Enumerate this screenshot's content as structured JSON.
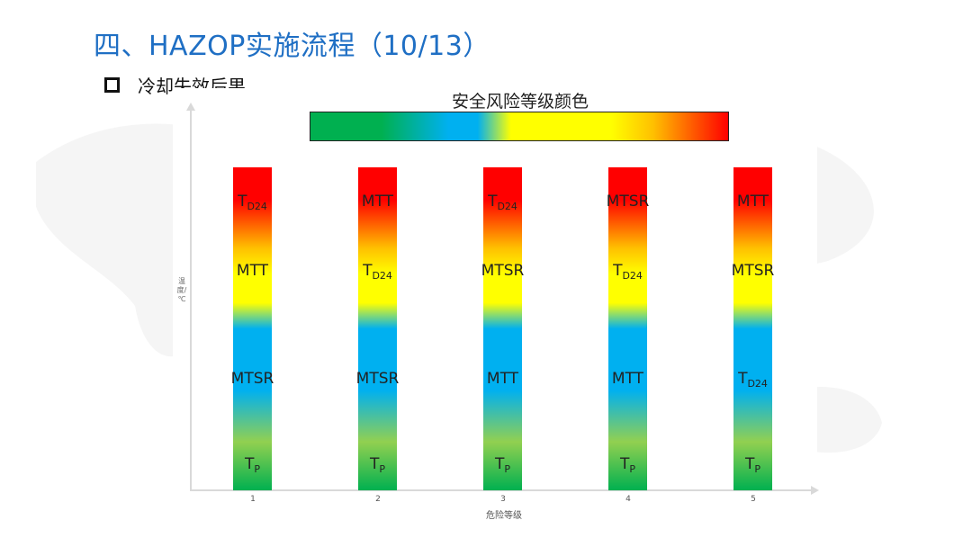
{
  "slide": {
    "title": "四、HAZOP实施流程（10/13）",
    "bullet": "冷却失效后果"
  },
  "legend": {
    "title": "安全风险等级颜色",
    "gradient_colors": [
      "#00b050",
      "#00b0f0",
      "#ffff00",
      "#ffc000",
      "#ff0000"
    ]
  },
  "chart_data": {
    "type": "table",
    "ylabel": "温度/℃",
    "xlabel": "危险等级",
    "categories": [
      "1",
      "2",
      "3",
      "4",
      "5"
    ],
    "columns": [
      {
        "category": "1",
        "labels_top_to_bottom": [
          "TD24",
          "MTT",
          "MTSR",
          "Tp"
        ]
      },
      {
        "category": "2",
        "labels_top_to_bottom": [
          "MTT",
          "TD24",
          "MTSR",
          "Tp"
        ]
      },
      {
        "category": "3",
        "labels_top_to_bottom": [
          "TD24",
          "MTSR",
          "MTT",
          "Tp"
        ]
      },
      {
        "category": "4",
        "labels_top_to_bottom": [
          "MTSR",
          "TD24",
          "MTT",
          "Tp"
        ]
      },
      {
        "category": "5",
        "labels_top_to_bottom": [
          "MTT",
          "MTSR",
          "TD24",
          "Tp"
        ]
      }
    ],
    "label_parts": {
      "TD24": {
        "main": "T",
        "sub": "D24"
      },
      "Tp": {
        "main": "T",
        "sub": "P"
      },
      "MTT": {
        "main": "MTT",
        "sub": ""
      },
      "MTSR": {
        "main": "MTSR",
        "sub": ""
      }
    },
    "band_colors_top_to_bottom": [
      "#ff0000",
      "#ffff00",
      "#00b0f0",
      "#00b050"
    ],
    "grid": false
  }
}
